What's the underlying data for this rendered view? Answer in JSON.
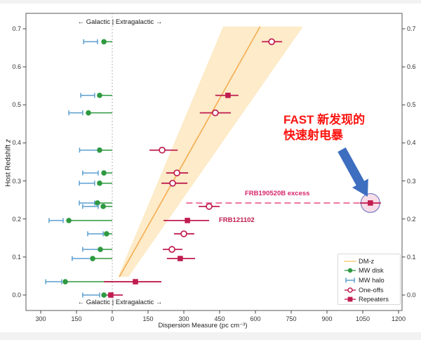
{
  "axes": {
    "y_label_main": "Host Redshift ",
    "y_label_italic": "z",
    "x_label": "Dispersion Measure (pc cm⁻³)",
    "region_label_top": "← Galactic | Extragalactic →",
    "region_label_bottom": "← Galactic | Extragalactic →",
    "x_ticks": [
      {
        "value": -300,
        "label": "300"
      },
      {
        "value": -150,
        "label": "150"
      },
      {
        "value": 0,
        "label": "0"
      },
      {
        "value": 150,
        "label": "150"
      },
      {
        "value": 300,
        "label": "300"
      },
      {
        "value": 450,
        "label": "450"
      },
      {
        "value": 600,
        "label": "600"
      },
      {
        "value": 750,
        "label": "750"
      },
      {
        "value": 900,
        "label": "900"
      },
      {
        "value": 1050,
        "label": "1050"
      },
      {
        "value": 1200,
        "label": "1200"
      }
    ],
    "y_ticks": [
      {
        "value": 0.0,
        "label": "0.0"
      },
      {
        "value": 0.1,
        "label": "0.1"
      },
      {
        "value": 0.2,
        "label": "0.2"
      },
      {
        "value": 0.3,
        "label": "0.3"
      },
      {
        "value": 0.4,
        "label": "0.4"
      },
      {
        "value": 0.5,
        "label": "0.5"
      },
      {
        "value": 0.6,
        "label": "0.6"
      },
      {
        "value": 0.7,
        "label": "0.7"
      }
    ]
  },
  "legend": {
    "items": [
      {
        "label": "DM-z",
        "marker": "dmz-line"
      },
      {
        "label": "MW disk",
        "marker": "green-dot"
      },
      {
        "label": "MW halo",
        "marker": "blue-errorbar"
      },
      {
        "label": "One-offs",
        "marker": "open-circle"
      },
      {
        "label": "Repeaters",
        "marker": "filled-square"
      }
    ]
  },
  "annotations": {
    "frb190520b_excess": "FRB190520B excess",
    "frb121102": "FRB121102",
    "fast_line1": "FAST 新发现的",
    "fast_line2": "快速射电暴"
  },
  "chart_data": {
    "type": "scatter",
    "title": "",
    "xlabel": "Dispersion Measure (pc cm⁻³)",
    "ylabel": "Host Redshift z",
    "xlim": [
      -360,
      1215
    ],
    "ylim": [
      -0.041,
      0.741
    ],
    "grid": false,
    "legend_position": "lower right",
    "x_axis_note": "negative x = Milky Way (Galactic) DM contribution, positive x = extragalactic DM",
    "dm_z_relation": {
      "name": "DM-z",
      "line_points": [
        [
          30,
          0.048
        ],
        [
          620,
          0.706
        ]
      ],
      "band_polygon": [
        [
          24,
          0.048
        ],
        [
          465,
          0.706
        ],
        [
          800,
          0.706
        ],
        [
          68,
          0.048
        ]
      ],
      "line_color": "#f4ad52",
      "band_color": "#fdebc9"
    },
    "frbs": [
      {
        "z": 0.666,
        "mw_disk_dm": -35,
        "mw_halo_range": [
          -120,
          -62
        ],
        "type": "one-off",
        "dm": 668,
        "dm_err": [
          627,
          712
        ]
      },
      {
        "z": 0.525,
        "mw_disk_dm": -53,
        "mw_halo_range": [
          -132,
          -74
        ],
        "type": "repeater",
        "dm": 485,
        "dm_err": [
          432,
          529
        ]
      },
      {
        "z": 0.479,
        "mw_disk_dm": -100,
        "mw_halo_range": [
          -182,
          -124
        ],
        "type": "one-off",
        "dm": 432,
        "dm_err": [
          367,
          497
        ]
      },
      {
        "z": 0.381,
        "mw_disk_dm": -53,
        "mw_halo_range": [
          -137,
          -59
        ],
        "type": "one-off",
        "dm": 209,
        "dm_err": [
          156,
          274
        ]
      },
      {
        "z": 0.321,
        "mw_disk_dm": -35,
        "mw_halo_range": [
          -124,
          -59
        ],
        "type": "one-off",
        "dm": 271,
        "dm_err": [
          226,
          318
        ]
      },
      {
        "z": 0.294,
        "mw_disk_dm": -53,
        "mw_halo_range": [
          -138,
          -74
        ],
        "type": "one-off",
        "dm": 253,
        "dm_err": [
          206,
          315
        ]
      },
      {
        "z": 0.242,
        "mw_disk_dm": -62,
        "mw_halo_range": [
          -138,
          -74
        ],
        "type": "repeater",
        "dm": 1082,
        "dm_err": [
          1038,
          1126
        ],
        "label": "FRB190520B excess",
        "highlighted": true,
        "dashed_line_from_dm": 310
      },
      {
        "z": 0.233,
        "mw_disk_dm": -38,
        "mw_halo_range": [
          -124,
          -59
        ],
        "type": "one-off",
        "dm": 406,
        "dm_err": [
          362,
          450
        ]
      },
      {
        "z": 0.196,
        "mw_disk_dm": -182,
        "mw_halo_range": [
          -265,
          -206
        ],
        "type": "repeater",
        "dm": 315,
        "dm_err": [
          215,
          406
        ],
        "label": "FRB121102"
      },
      {
        "z": 0.161,
        "mw_disk_dm": -24,
        "mw_halo_range": [
          -103,
          -38
        ],
        "type": "one-off",
        "dm": 300,
        "dm_err": [
          259,
          344
        ]
      },
      {
        "z": 0.12,
        "mw_disk_dm": -50,
        "mw_halo_range": [
          -124,
          -53
        ],
        "type": "one-off",
        "dm": 250,
        "dm_err": [
          212,
          294
        ]
      },
      {
        "z": 0.096,
        "mw_disk_dm": -82,
        "mw_halo_range": [
          -168,
          -88
        ],
        "type": "repeater",
        "dm": 285,
        "dm_err": [
          229,
          347
        ]
      },
      {
        "z": 0.035,
        "mw_disk_dm": -197,
        "mw_halo_range": [
          -279,
          -212
        ],
        "type": "repeater",
        "dm": 97,
        "dm_err": [
          -35,
          206
        ]
      },
      {
        "z": 0.0,
        "mw_disk_dm": -35,
        "mw_halo_range": [
          -124,
          -53
        ],
        "type": "repeater",
        "dm": -6,
        "dm_err": [
          -21,
          44
        ]
      }
    ],
    "colors": {
      "mw_disk": "#2e9940",
      "mw_halo": "#5c9fd0",
      "frb": "#c01d50",
      "dashed_excess_line": "#ee7ea8",
      "highlight_fill": "rgba(243,198,216,0.6)",
      "highlight_stroke": "#8087c8",
      "arrow": "#3d6ec0",
      "zero_line": "#a6a6a6",
      "frame": "#7f7f7f"
    }
  }
}
